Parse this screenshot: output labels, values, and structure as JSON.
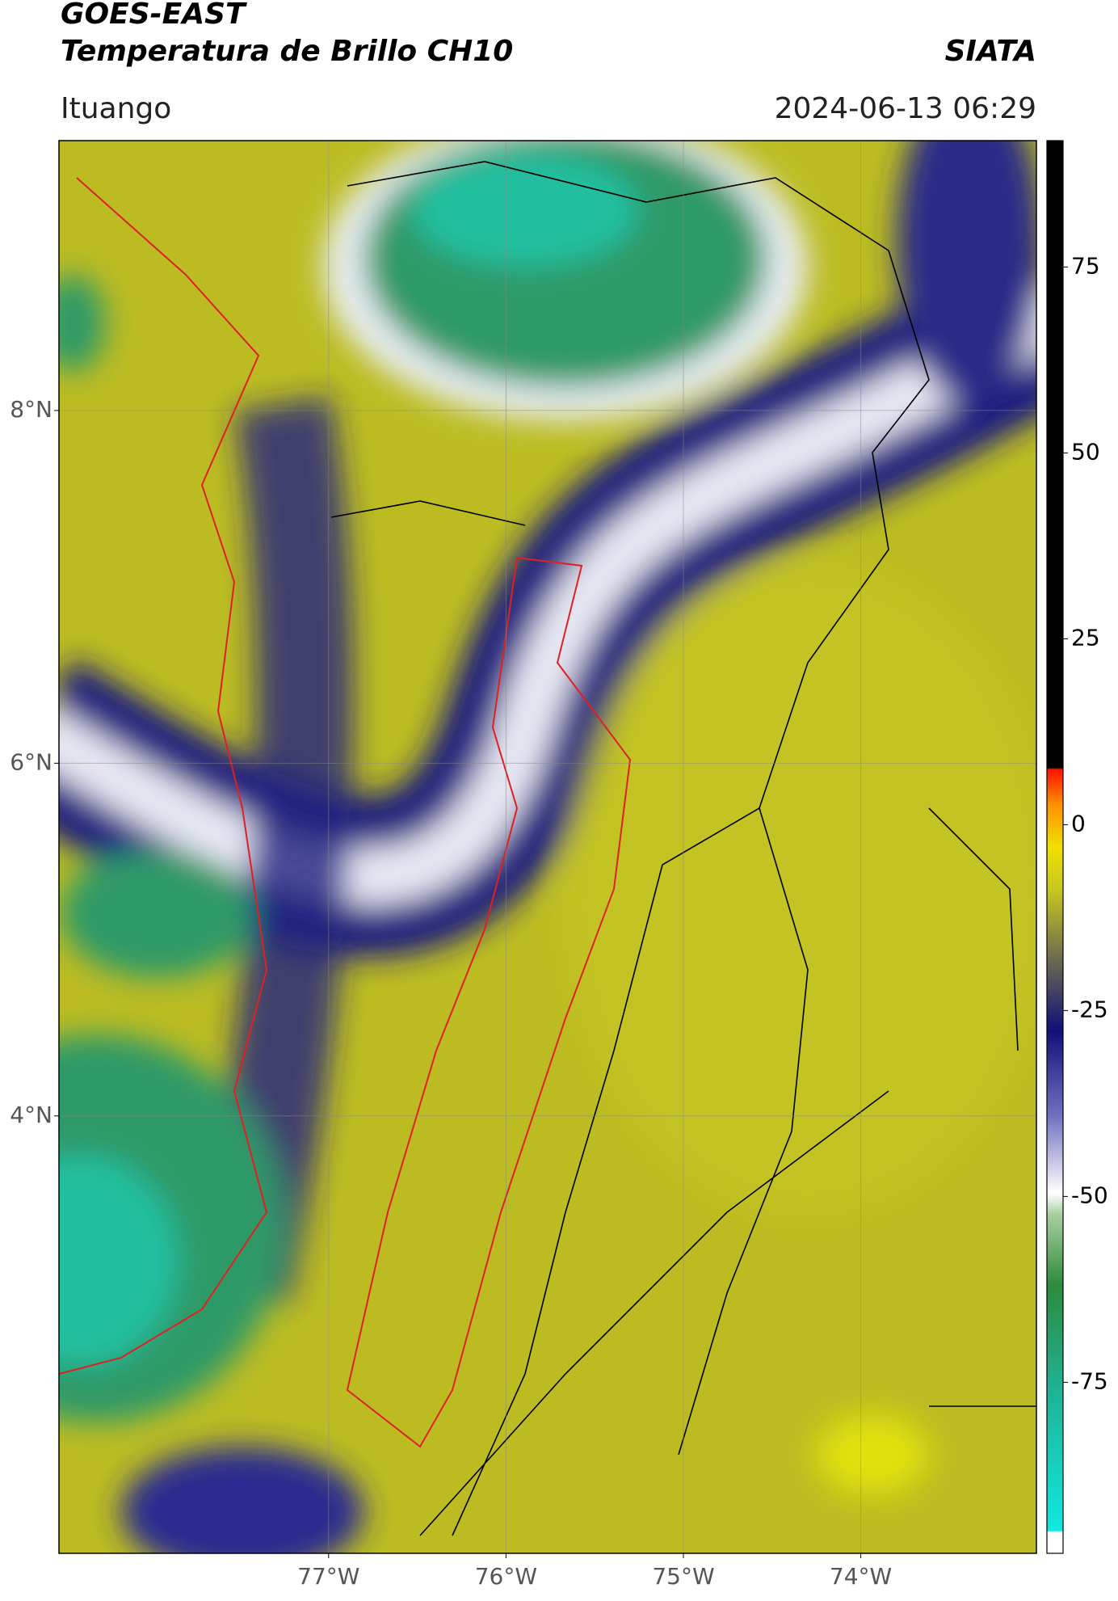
{
  "header": {
    "title": "GOES-EAST",
    "subtitle": "Temperatura de Brillo CH10",
    "source": "SIATA",
    "location": "Ituango",
    "datetime": "2024-06-13 06:29"
  },
  "map": {
    "lonlim": [
      -78.52,
      -73.01
    ],
    "latlim": [
      1.52,
      9.53
    ],
    "lonticks": [
      {
        "value": -77,
        "label": "77°W"
      },
      {
        "value": -76,
        "label": "76°W"
      },
      {
        "value": -75,
        "label": "75°W"
      },
      {
        "value": -74,
        "label": "74°W"
      }
    ],
    "latticks": [
      {
        "value": 8,
        "label": "8°N"
      },
      {
        "value": 6,
        "label": "6°N"
      },
      {
        "value": 4,
        "label": "4°N"
      }
    ],
    "grid": true
  },
  "colorbar": {
    "lim": [
      -98,
      92
    ],
    "ticks": [
      75,
      50,
      25,
      0,
      -25,
      -50,
      -75
    ]
  }
}
